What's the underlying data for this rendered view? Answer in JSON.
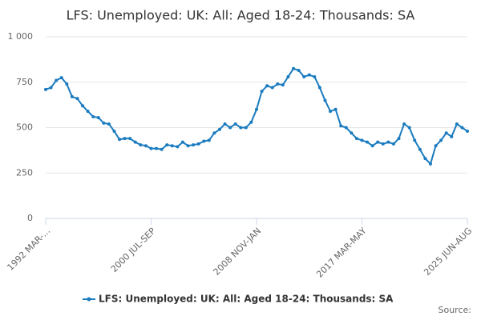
{
  "chart_data": {
    "type": "line",
    "title": "LFS: Unemployed: UK: All: Aged 18-24: Thousands: SA",
    "categories": [
      "1992 MAR-...",
      null,
      null,
      null,
      null,
      null,
      null,
      null,
      null,
      null,
      null,
      null,
      null,
      null,
      null,
      null,
      null,
      null,
      null,
      null,
      "2000 JUL-SEP",
      null,
      null,
      null,
      null,
      null,
      null,
      null,
      null,
      null,
      null,
      null,
      null,
      null,
      null,
      null,
      null,
      null,
      null,
      null,
      "2008 NOV-JAN",
      null,
      null,
      null,
      null,
      null,
      null,
      null,
      null,
      null,
      null,
      null,
      null,
      null,
      null,
      null,
      null,
      null,
      null,
      null,
      "2017 MAR-MAY",
      null,
      null,
      null,
      null,
      null,
      null,
      null,
      null,
      null,
      null,
      null,
      null,
      null,
      null,
      null,
      null,
      null,
      null,
      null,
      "2025 JUN-AUG"
    ],
    "series": [
      {
        "name": "LFS: Unemployed: UK: All: Aged 18-24: Thousands: SA",
        "color": "#1a7bbf",
        "values": [
          710,
          720,
          760,
          775,
          740,
          670,
          660,
          620,
          590,
          560,
          555,
          525,
          520,
          480,
          435,
          440,
          440,
          420,
          405,
          400,
          385,
          385,
          380,
          405,
          400,
          395,
          420,
          400,
          405,
          410,
          425,
          430,
          470,
          490,
          520,
          500,
          520,
          500,
          500,
          530,
          600,
          700,
          730,
          720,
          740,
          735,
          780,
          825,
          815,
          780,
          790,
          780,
          720,
          650,
          590,
          600,
          510,
          500,
          470,
          440,
          430,
          420,
          400,
          420,
          410,
          420,
          410,
          440,
          520,
          500,
          430,
          380,
          330,
          300,
          400,
          430,
          470,
          450,
          520,
          500,
          480
        ]
      }
    ],
    "ylim": [
      0,
      1000
    ],
    "yticks": [
      0,
      250,
      500,
      750,
      {
        "value": 1000,
        "label": "1 000"
      }
    ],
    "grid": true,
    "legend": "bottom",
    "source": "Source:"
  }
}
